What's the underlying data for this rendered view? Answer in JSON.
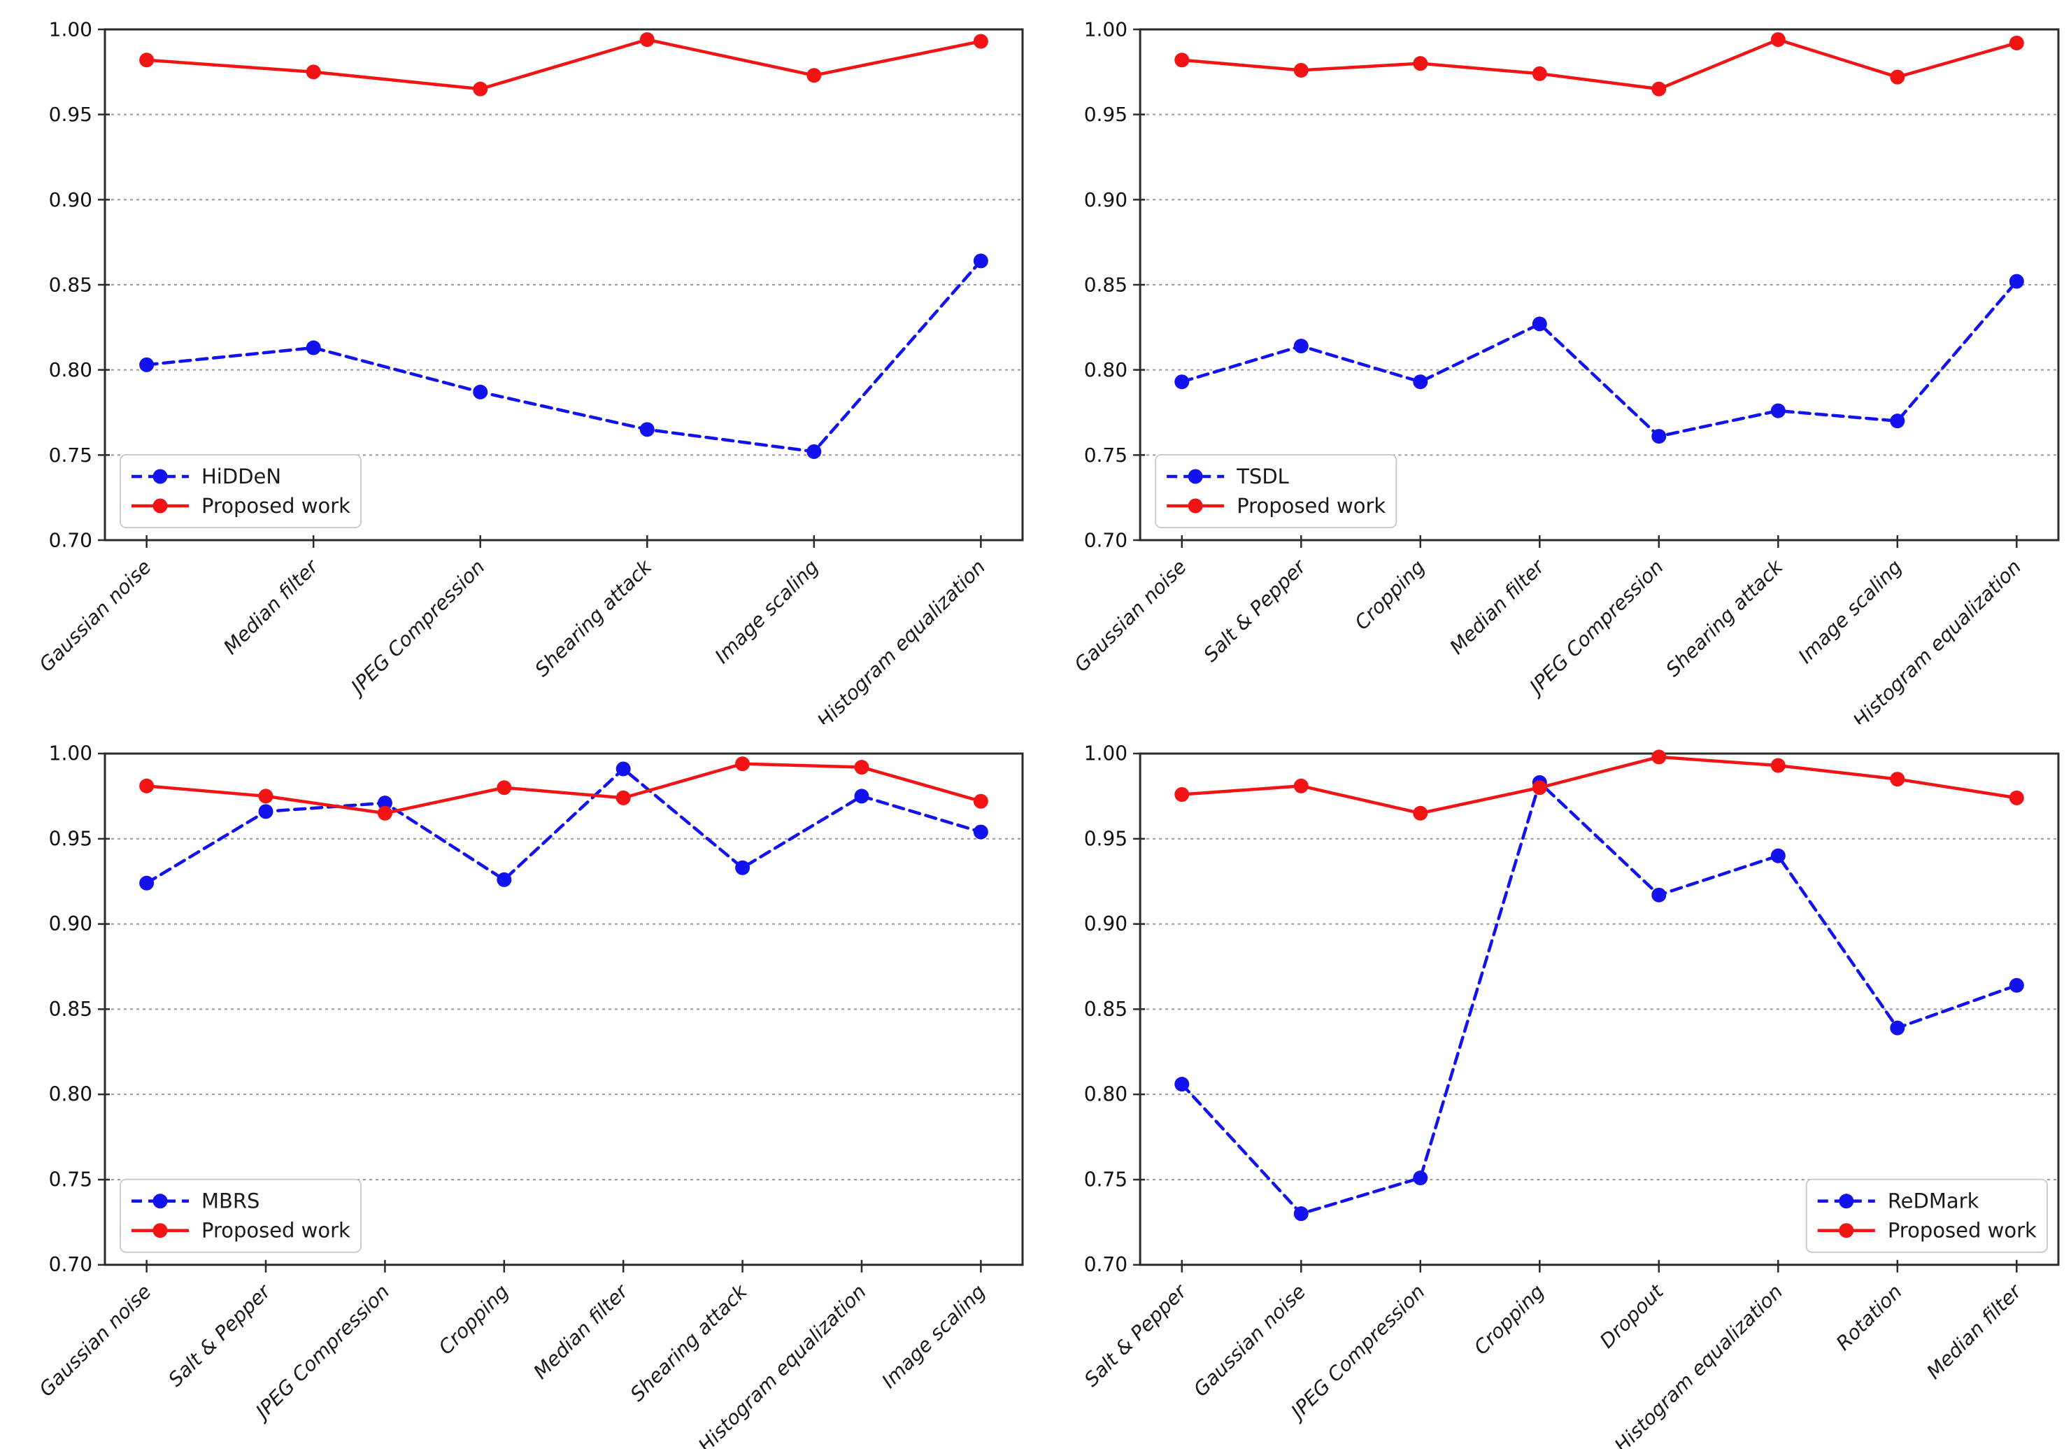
{
  "page": {
    "background_color": "#ffffff",
    "layout": "2x2 subplot grid of line charts comparing watermarking baselines vs proposed method"
  },
  "style": {
    "grid_color": "#999999",
    "spine_color": "#2b2b2b",
    "tick_label_color": "#111111",
    "legend_border_color": "#cccccc",
    "legend_background": "#ffffff",
    "baseline_color": "#1212ef",
    "proposed_color": "#f21414"
  },
  "chart_data": [
    {
      "type": "line",
      "position": "top-left",
      "title": "",
      "xlabel": "",
      "ylabel": "",
      "categories": [
        "Gaussian noise",
        "Median filter",
        "JPEG Compression",
        "Shearing attack",
        "Image scaling",
        "Histogram equalization"
      ],
      "series": [
        {
          "name": "HiDDeN",
          "color": "#1212ef",
          "line_style": "dashed",
          "marker": "circle",
          "values": [
            0.803,
            0.813,
            0.787,
            0.765,
            0.752,
            0.864
          ]
        },
        {
          "name": "Proposed work",
          "color": "#f21414",
          "line_style": "solid",
          "marker": "circle",
          "values": [
            0.982,
            0.975,
            0.965,
            0.994,
            0.973,
            0.993
          ]
        }
      ],
      "ylim": [
        0.7,
        1.0
      ],
      "y_ticks": [
        0.7,
        0.75,
        0.8,
        0.85,
        0.9,
        0.95,
        1.0
      ],
      "y_tick_labels": [
        "0.70",
        "0.75",
        "0.80",
        "0.85",
        "0.90",
        "0.95",
        "1.00"
      ],
      "grid": "horizontal dotted",
      "legend_position": "lower-left"
    },
    {
      "type": "line",
      "position": "top-right",
      "title": "",
      "xlabel": "",
      "ylabel": "",
      "categories": [
        "Gaussian noise",
        "Salt & Pepper",
        "Cropping",
        "Median filter",
        "JPEG Compression",
        "Shearing attack",
        "Image scaling",
        "Histogram equalization"
      ],
      "series": [
        {
          "name": "TSDL",
          "color": "#1212ef",
          "line_style": "dashed",
          "marker": "circle",
          "values": [
            0.793,
            0.814,
            0.793,
            0.827,
            0.761,
            0.776,
            0.77,
            0.852
          ]
        },
        {
          "name": "Proposed work",
          "color": "#f21414",
          "line_style": "solid",
          "marker": "circle",
          "values": [
            0.982,
            0.976,
            0.98,
            0.974,
            0.965,
            0.994,
            0.972,
            0.992
          ]
        }
      ],
      "ylim": [
        0.7,
        1.0
      ],
      "y_ticks": [
        0.7,
        0.75,
        0.8,
        0.85,
        0.9,
        0.95,
        1.0
      ],
      "y_tick_labels": [
        "0.70",
        "0.75",
        "0.80",
        "0.85",
        "0.90",
        "0.95",
        "1.00"
      ],
      "grid": "horizontal dotted",
      "legend_position": "lower-left"
    },
    {
      "type": "line",
      "position": "bottom-left",
      "title": "",
      "xlabel": "",
      "ylabel": "",
      "categories": [
        "Gaussian noise",
        "Salt & Pepper",
        "JPEG Compression",
        "Cropping",
        "Median filter",
        "Shearing attack",
        "Histogram equalization",
        "Image scaling"
      ],
      "series": [
        {
          "name": "MBRS",
          "color": "#1212ef",
          "line_style": "dashed",
          "marker": "circle",
          "values": [
            0.924,
            0.966,
            0.971,
            0.926,
            0.991,
            0.933,
            0.975,
            0.954
          ]
        },
        {
          "name": "Proposed work",
          "color": "#f21414",
          "line_style": "solid",
          "marker": "circle",
          "values": [
            0.981,
            0.975,
            0.965,
            0.98,
            0.974,
            0.994,
            0.992,
            0.972
          ]
        }
      ],
      "ylim": [
        0.7,
        1.0
      ],
      "y_ticks": [
        0.7,
        0.75,
        0.8,
        0.85,
        0.9,
        0.95,
        1.0
      ],
      "y_tick_labels": [
        "0.70",
        "0.75",
        "0.80",
        "0.85",
        "0.90",
        "0.95",
        "1.00"
      ],
      "grid": "horizontal dotted",
      "legend_position": "lower-left"
    },
    {
      "type": "line",
      "position": "bottom-right",
      "title": "",
      "xlabel": "",
      "ylabel": "",
      "categories": [
        "Salt & Pepper",
        "Gaussian noise",
        "JPEG Compression",
        "Cropping",
        "Dropout",
        "Histogram equalization",
        "Rotation",
        "Median filter"
      ],
      "series": [
        {
          "name": "ReDMark",
          "color": "#1212ef",
          "line_style": "dashed",
          "marker": "circle",
          "values": [
            0.806,
            0.73,
            0.751,
            0.983,
            0.917,
            0.94,
            0.839,
            0.864
          ]
        },
        {
          "name": "Proposed work",
          "color": "#f21414",
          "line_style": "solid",
          "marker": "circle",
          "values": [
            0.976,
            0.981,
            0.965,
            0.98,
            0.998,
            0.993,
            0.985,
            0.974
          ]
        }
      ],
      "ylim": [
        0.7,
        1.0
      ],
      "y_ticks": [
        0.7,
        0.75,
        0.8,
        0.85,
        0.9,
        0.95,
        1.0
      ],
      "y_tick_labels": [
        "0.70",
        "0.75",
        "0.80",
        "0.85",
        "0.90",
        "0.95",
        "1.00"
      ],
      "grid": "horizontal dotted",
      "legend_position": "lower-right"
    }
  ]
}
